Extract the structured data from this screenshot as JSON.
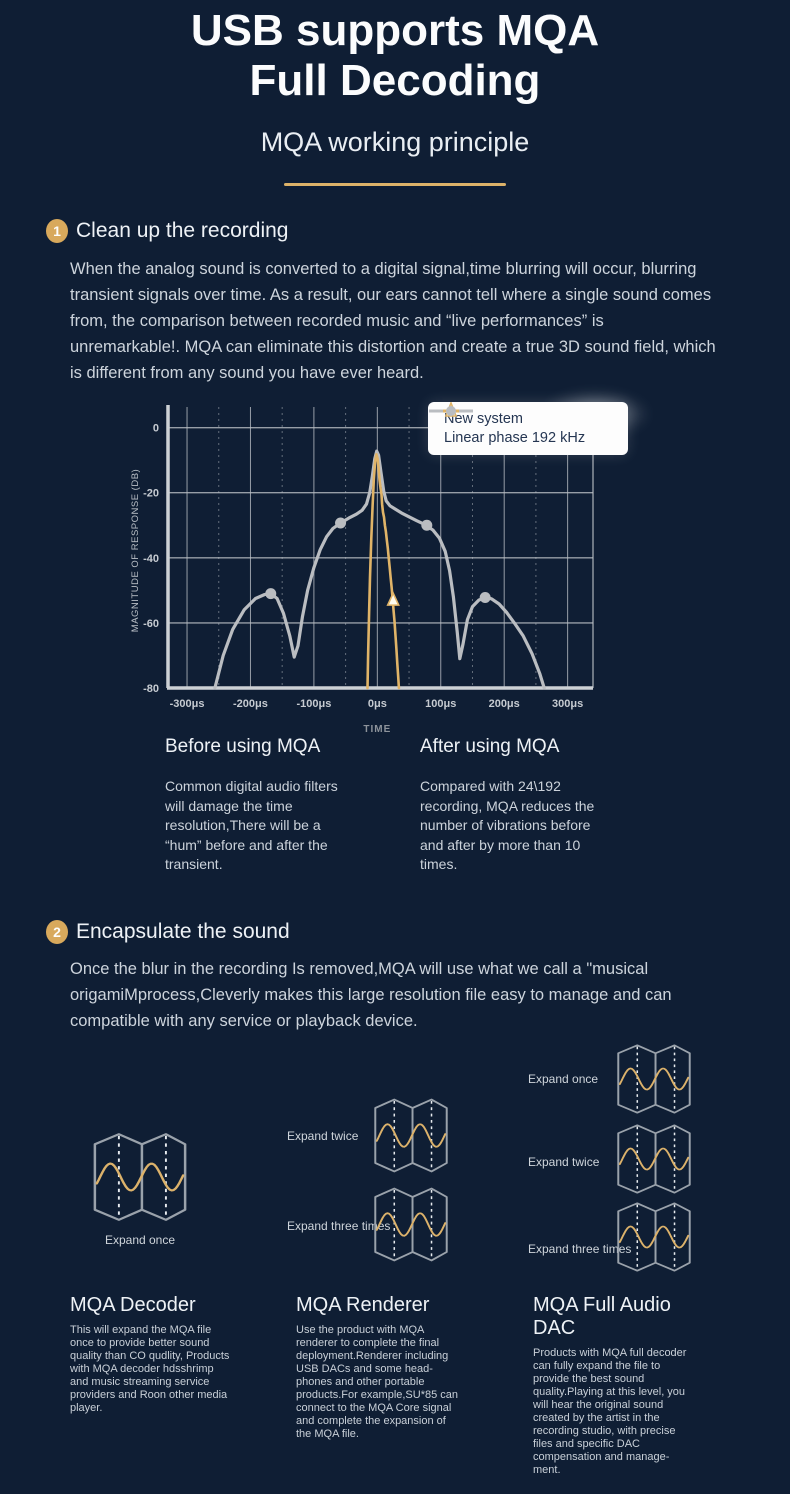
{
  "header": {
    "title_line1": "USB supports MQA",
    "title_line2": "Full Decoding",
    "subtitle": "MQA working principle"
  },
  "section1": {
    "number": "1",
    "heading": "Clean up the recording",
    "body": "When the analog sound is converted to a digital signal,time blurring will occur, blurring transient signals over time. As a result, our ears cannot tell where a single sound comes from, the comparison between recorded music and “live performances” is unremarkable!. MQA can eliminate this distortion and create a true 3D sound field, which is different from any sound you have ever heard.",
    "accent_color": "#dcb269"
  },
  "chart_data": {
    "type": "line",
    "xlabel": "TIME",
    "ylabel": "MAGNITUDE OF RESPONSE (DB)",
    "x_ticks": [
      "-300μs",
      "-200μs",
      "-100μs",
      "0μs",
      "100μs",
      "200μs",
      "300μs"
    ],
    "x_tick_values": [
      -300,
      -200,
      -100,
      0,
      100,
      200,
      300
    ],
    "y_ticks": [
      0,
      -20,
      -40,
      -60,
      -80
    ],
    "xlim": [
      -330,
      340
    ],
    "ylim": [
      -80,
      4.5
    ],
    "grid": "solid horizontal every 20dB; vertical every 50μs, dashed at half-intervals",
    "legend_position": "top-right",
    "legend": [
      {
        "name": "New system",
        "color": "#e0b468",
        "marker": "triangle"
      },
      {
        "name": "Linear phase 192 kHz",
        "color": "#babdc1",
        "marker": "circle"
      }
    ],
    "series": [
      {
        "name": "Linear phase 192 kHz",
        "color": "#babdc1",
        "width": 3.2,
        "points": [
          [
            -256,
            -80
          ],
          [
            -243,
            -70
          ],
          [
            -228,
            -62
          ],
          [
            -210,
            -56
          ],
          [
            -192,
            -52.5
          ],
          [
            -178,
            -51.3
          ],
          [
            -168,
            -51
          ],
          [
            -158,
            -52.5
          ],
          [
            -148,
            -57
          ],
          [
            -138,
            -64
          ],
          [
            -131,
            -70.5
          ],
          [
            -125,
            -67
          ],
          [
            -118,
            -58
          ],
          [
            -110,
            -50
          ],
          [
            -100,
            -43
          ],
          [
            -90,
            -37.5
          ],
          [
            -80,
            -33.5
          ],
          [
            -70,
            -31
          ],
          [
            -58,
            -29.3
          ],
          [
            -45,
            -27.8
          ],
          [
            -33,
            -26.6
          ],
          [
            -24,
            -25.4
          ],
          [
            -17,
            -23.5
          ],
          [
            -12,
            -20
          ],
          [
            -8,
            -15
          ],
          [
            -4,
            -9.5
          ],
          [
            -1,
            -7.2
          ],
          [
            2,
            -8.5
          ],
          [
            6,
            -14
          ],
          [
            10,
            -19.5
          ],
          [
            14,
            -22.5
          ],
          [
            20,
            -24
          ],
          [
            28,
            -25
          ],
          [
            38,
            -26.2
          ],
          [
            50,
            -27.4
          ],
          [
            62,
            -28.6
          ],
          [
            75,
            -29.8
          ],
          [
            88,
            -31.5
          ],
          [
            98,
            -34
          ],
          [
            107,
            -38
          ],
          [
            114,
            -44
          ],
          [
            120,
            -52
          ],
          [
            126,
            -63
          ],
          [
            130,
            -71
          ],
          [
            135,
            -66.5
          ],
          [
            142,
            -59
          ],
          [
            150,
            -55
          ],
          [
            160,
            -53
          ],
          [
            170,
            -52.2
          ],
          [
            180,
            -52.6
          ],
          [
            192,
            -54.2
          ],
          [
            204,
            -56.8
          ],
          [
            216,
            -60
          ],
          [
            230,
            -64
          ],
          [
            244,
            -69.5
          ],
          [
            256,
            -75.5
          ],
          [
            263,
            -80
          ]
        ],
        "marker_points": [
          [
            -168,
            -51
          ],
          [
            -58,
            -29.3
          ],
          [
            78,
            -30
          ],
          [
            170,
            -52.2
          ]
        ]
      },
      {
        "name": "New system",
        "color": "#e0b468",
        "width": 2.6,
        "points": [
          [
            -15.5,
            -80
          ],
          [
            -14.5,
            -70
          ],
          [
            -13,
            -57
          ],
          [
            -11.5,
            -46
          ],
          [
            -9.5,
            -34
          ],
          [
            -7.5,
            -24
          ],
          [
            -5.5,
            -16
          ],
          [
            -3.5,
            -10.5
          ],
          [
            -1.5,
            -8.2
          ],
          [
            0.5,
            -9.5
          ],
          [
            2,
            -12.5
          ],
          [
            3.5,
            -16
          ],
          [
            5,
            -18.5
          ],
          [
            6.5,
            -20.5
          ],
          [
            7.5,
            -23.5
          ],
          [
            9,
            -26
          ],
          [
            10.5,
            -27.5
          ],
          [
            12,
            -30
          ],
          [
            13.5,
            -32
          ],
          [
            15,
            -34.5
          ],
          [
            16.5,
            -37
          ],
          [
            18,
            -40
          ],
          [
            19.5,
            -43
          ],
          [
            21,
            -46
          ],
          [
            22.5,
            -49
          ],
          [
            24,
            -52.5
          ],
          [
            25.5,
            -56
          ],
          [
            27,
            -59.5
          ],
          [
            28.5,
            -63.5
          ],
          [
            30,
            -68
          ],
          [
            31.5,
            -72.5
          ],
          [
            33,
            -77
          ],
          [
            34,
            -80
          ]
        ],
        "marker_points": [
          [
            25,
            -53
          ]
        ]
      }
    ]
  },
  "comparison": {
    "before": {
      "heading": "Before using MQA",
      "body": "Common digital audio filters will damage the time resolution,There will be a “hum” before and after the transient."
    },
    "after": {
      "heading": "After using MQA",
      "body": "Compared with 24\\192 recording, MQA reduces the number of vibrations before and after by more than 10 times."
    }
  },
  "section2": {
    "number": "2",
    "heading": "Encapsulate the sound",
    "body": "Once the blur in the recording Is removed,MQA will use what we call a \"musical origamiMprocess,Cleverly makes this large resolution file easy to manage and can compatible with any service or playback device."
  },
  "origami": {
    "left_label": "Expand once",
    "middle": [
      {
        "label": "Expand twice"
      },
      {
        "label": "Expand three times"
      }
    ],
    "right": [
      {
        "label": "Expand once"
      },
      {
        "label": "Expand twice"
      },
      {
        "label": "Expand three times"
      }
    ]
  },
  "features": [
    {
      "heading": "MQA Decoder",
      "body": "This will expand the MQA file once to provide better sound quality than CO qudlity, Products with MQA decoder hdsshrimp and music streaming service providers and Roon other media player."
    },
    {
      "heading": "MQA Renderer",
      "body": "Use the product with MQA renderer to complete the final deployment.Renderer including USB DACs and some head-phones and other portable products.For example,SU*85 can connect to the MQA Core signal and complete the expansion of the MQA file."
    },
    {
      "heading": "MQA Full Audio DAC",
      "body": "Products with MQA full decoder can fully expand the file to provide the best sound quality.Playing at this level, you will hear the original sound created by the artist in the recording studio, with precise files and specific DAC compensation and manage-ment."
    }
  ]
}
